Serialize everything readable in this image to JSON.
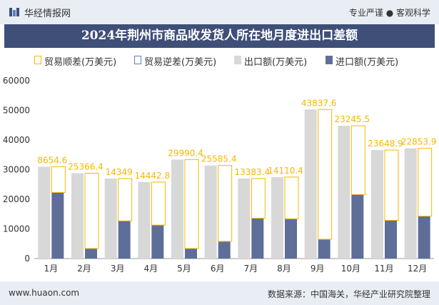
{
  "header": {
    "brand": "华经情报网",
    "slogan": "专业严谨 ● 客观科学"
  },
  "footer": {
    "url": "www.huaon.com",
    "source": "数据来源：中国海关，华经产业研究院整理"
  },
  "colors": {
    "surplus": "#f5b800",
    "deficit": "#5b7fc7",
    "export": "#d8d8d8",
    "import": "#5e6e98",
    "title_bg": "#3f4f78",
    "band": "#e9eef5"
  },
  "chart_data": {
    "type": "bar",
    "title": "2024年荆州市商品收发货人所在地月度进出口差额",
    "categories": [
      "1月",
      "2月",
      "3月",
      "4月",
      "5月",
      "6月",
      "7月",
      "8月",
      "9月",
      "10月",
      "11月",
      "12月"
    ],
    "series": [
      {
        "name": "贸易顺差(万美元)",
        "values": [
          8654.6,
          25366.4,
          14349,
          14442.8,
          29990.4,
          25585.4,
          13383.4,
          14110.4,
          43837.6,
          23245.5,
          23648.9,
          22853.9
        ]
      },
      {
        "name": "贸易逆差(万美元)",
        "values": [
          null,
          null,
          null,
          null,
          null,
          null,
          null,
          null,
          null,
          null,
          null,
          null
        ]
      },
      {
        "name": "出口额(万美元)",
        "values": [
          31000,
          28800,
          27000,
          25800,
          33400,
          31400,
          27000,
          27500,
          50300,
          44800,
          36600,
          37200
        ]
      },
      {
        "name": "进口额(万美元)",
        "values": [
          22300,
          3400,
          12700,
          11300,
          3400,
          5800,
          13600,
          13400,
          6500,
          21600,
          12900,
          14300
        ]
      }
    ],
    "y_ticks": [
      "0",
      "10000",
      "20000",
      "30000",
      "40000",
      "50000",
      "60000"
    ],
    "ylim": [
      0,
      60000
    ],
    "grid": false,
    "legend": "top"
  }
}
